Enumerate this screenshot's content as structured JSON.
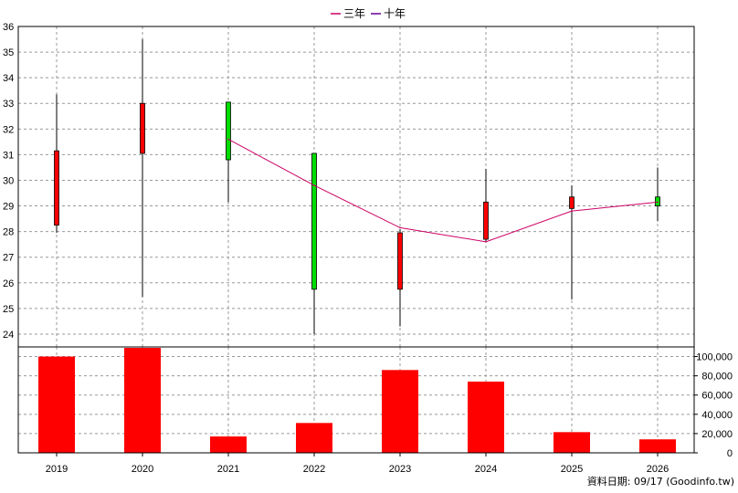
{
  "chart_data": {
    "type": "candlestick",
    "legend": [
      {
        "name": "三年",
        "color": "#cc0066"
      },
      {
        "name": "十年",
        "color": "#660099"
      }
    ],
    "categories": [
      "2019",
      "2020",
      "2021",
      "2022",
      "2023",
      "2024",
      "2025",
      "2026"
    ],
    "price": {
      "ylim": [
        23.5,
        36
      ],
      "ticks": [
        24,
        25,
        26,
        27,
        28,
        29,
        30,
        31,
        32,
        33,
        34,
        35,
        36
      ],
      "candles": [
        {
          "year": "2019",
          "open": 28.25,
          "close": 31.15,
          "high": 33.35,
          "low": 27.95,
          "color": "#ff0000"
        },
        {
          "year": "2020",
          "open": 31.05,
          "close": 33.0,
          "high": 35.5,
          "low": 25.45,
          "color": "#ff0000"
        },
        {
          "year": "2021",
          "open": 33.05,
          "close": 30.8,
          "high": 33.05,
          "low": 29.15,
          "color": "#00dd00"
        },
        {
          "year": "2022",
          "open": 31.05,
          "close": 25.75,
          "high": 31.05,
          "low": 24.0,
          "color": "#00dd00"
        },
        {
          "year": "2023",
          "open": 25.75,
          "close": 27.95,
          "high": 28.1,
          "low": 24.3,
          "color": "#ff0000"
        },
        {
          "year": "2024",
          "open": 27.7,
          "close": 29.15,
          "high": 30.45,
          "low": 27.6,
          "color": "#ff0000"
        },
        {
          "year": "2025",
          "open": 28.9,
          "close": 29.35,
          "high": 29.8,
          "low": 25.35,
          "color": "#ff0000"
        },
        {
          "year": "2026",
          "open": 29.35,
          "close": 29.0,
          "high": 30.5,
          "low": 28.4,
          "color": "#00dd00"
        }
      ]
    },
    "three_year_line": {
      "name": "三年",
      "x": [
        "2021",
        "2022",
        "2023",
        "2024",
        "2025",
        "2026"
      ],
      "values": [
        31.6,
        29.8,
        28.15,
        27.6,
        28.8,
        29.15
      ]
    },
    "volume": {
      "ylim": [
        0,
        110000
      ],
      "ticks": [
        0,
        20000,
        40000,
        60000,
        80000,
        100000
      ],
      "tick_labels": [
        "0",
        "20,000",
        "40,000",
        "60,000",
        "80,000",
        "100,000"
      ],
      "values": [
        100000,
        109000,
        17000,
        31000,
        86000,
        74000,
        21500,
        14000
      ],
      "color": "#ff0000"
    }
  },
  "source_text": "資料日期: 09/17  (Goodinfo.tw)"
}
